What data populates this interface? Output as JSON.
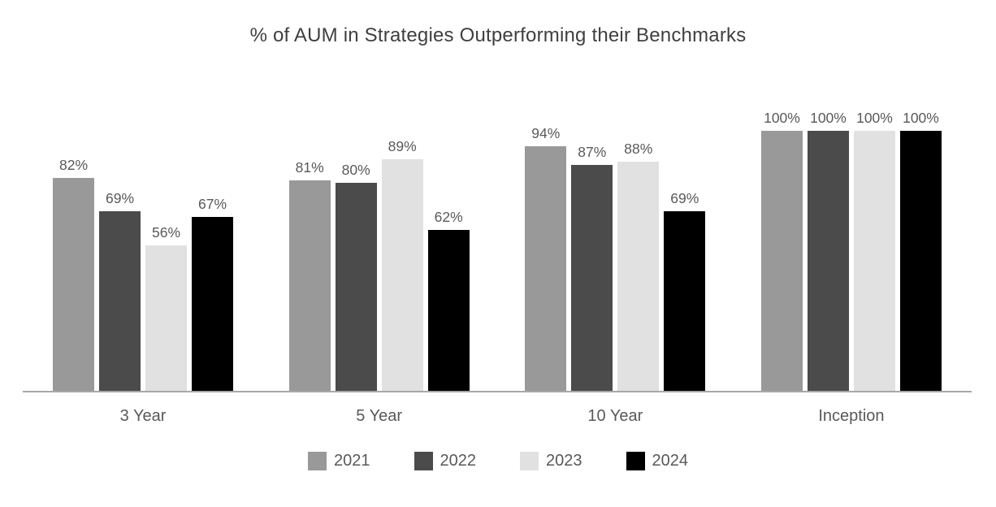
{
  "chart_data": {
    "type": "bar",
    "title": "% of AUM in Strategies Outperforming their Benchmarks",
    "categories": [
      "3 Year",
      "5 Year",
      "10 Year",
      "Inception"
    ],
    "series": [
      {
        "name": "2021",
        "color": "#999999",
        "values": [
          82,
          81,
          94,
          100
        ]
      },
      {
        "name": "2022",
        "color": "#4b4b4b",
        "values": [
          69,
          80,
          87,
          100
        ]
      },
      {
        "name": "2023",
        "color": "#e1e1e1",
        "values": [
          56,
          89,
          88,
          100
        ]
      },
      {
        "name": "2024",
        "color": "#000000",
        "values": [
          67,
          62,
          69,
          100
        ]
      }
    ],
    "value_suffix": "%",
    "ylabel": "",
    "xlabel": "",
    "ylim": [
      0,
      100
    ],
    "grid": false,
    "legend_position": "bottom",
    "axis_line_color": "#a8a8a8",
    "title_color": "#3f3f3f",
    "label_color": "#595959"
  }
}
